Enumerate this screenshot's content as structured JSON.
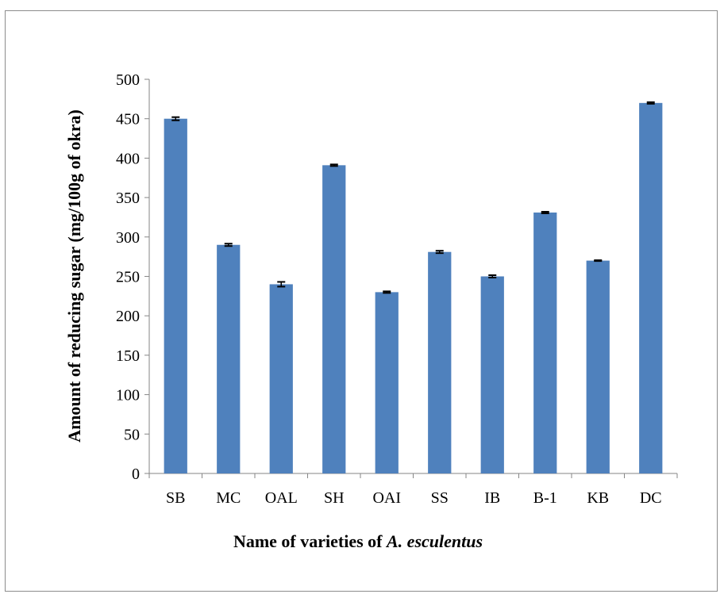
{
  "chart_data": {
    "type": "bar",
    "title": "",
    "xlabel": "Name of varieties of ",
    "xlabel_italic": "A. esculentus",
    "ylabel": "Amount of reducing sugar (mg/100g of okra)",
    "categories": [
      "SB",
      "MC",
      "OAL",
      "SH",
      "OAI",
      "SS",
      "IB",
      "B-1",
      "KB",
      "DC"
    ],
    "values": [
      450,
      290,
      240,
      391,
      230,
      281,
      250,
      331,
      270,
      470
    ],
    "errors": [
      2,
      1.5,
      3,
      1,
      1,
      1.5,
      1.5,
      1,
      0.5,
      1
    ],
    "ylim": [
      0,
      500
    ],
    "yticks": [
      0,
      50,
      100,
      150,
      200,
      250,
      300,
      350,
      400,
      450,
      500
    ],
    "grid": false,
    "legend": "none",
    "bar_color": "#4f81bd",
    "error_bar_color": "#000000"
  }
}
